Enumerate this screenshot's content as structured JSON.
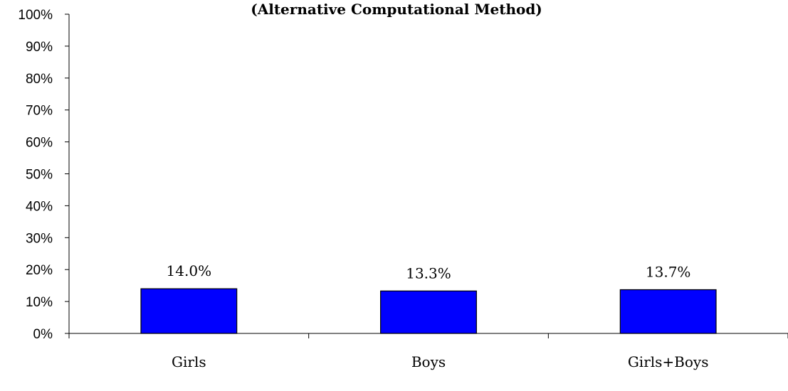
{
  "chart_data": {
    "type": "bar",
    "title": "(Alternative Computational Method)",
    "xlabel": "",
    "ylabel": "",
    "categories": [
      "Girls",
      "Boys",
      "Girls+Boys"
    ],
    "values": [
      14.0,
      13.3,
      13.7
    ],
    "data_labels": [
      "14.0%",
      "13.3%",
      "13.7%"
    ],
    "ylim": [
      0,
      100
    ],
    "yticks": [
      0,
      10,
      20,
      30,
      40,
      50,
      60,
      70,
      80,
      90,
      100
    ],
    "ytick_labels": [
      "0%",
      "10%",
      "20%",
      "30%",
      "40%",
      "50%",
      "60%",
      "70%",
      "80%",
      "90%",
      "100%"
    ],
    "grid": false,
    "legend": "none",
    "bar_color": "#0000FF"
  }
}
